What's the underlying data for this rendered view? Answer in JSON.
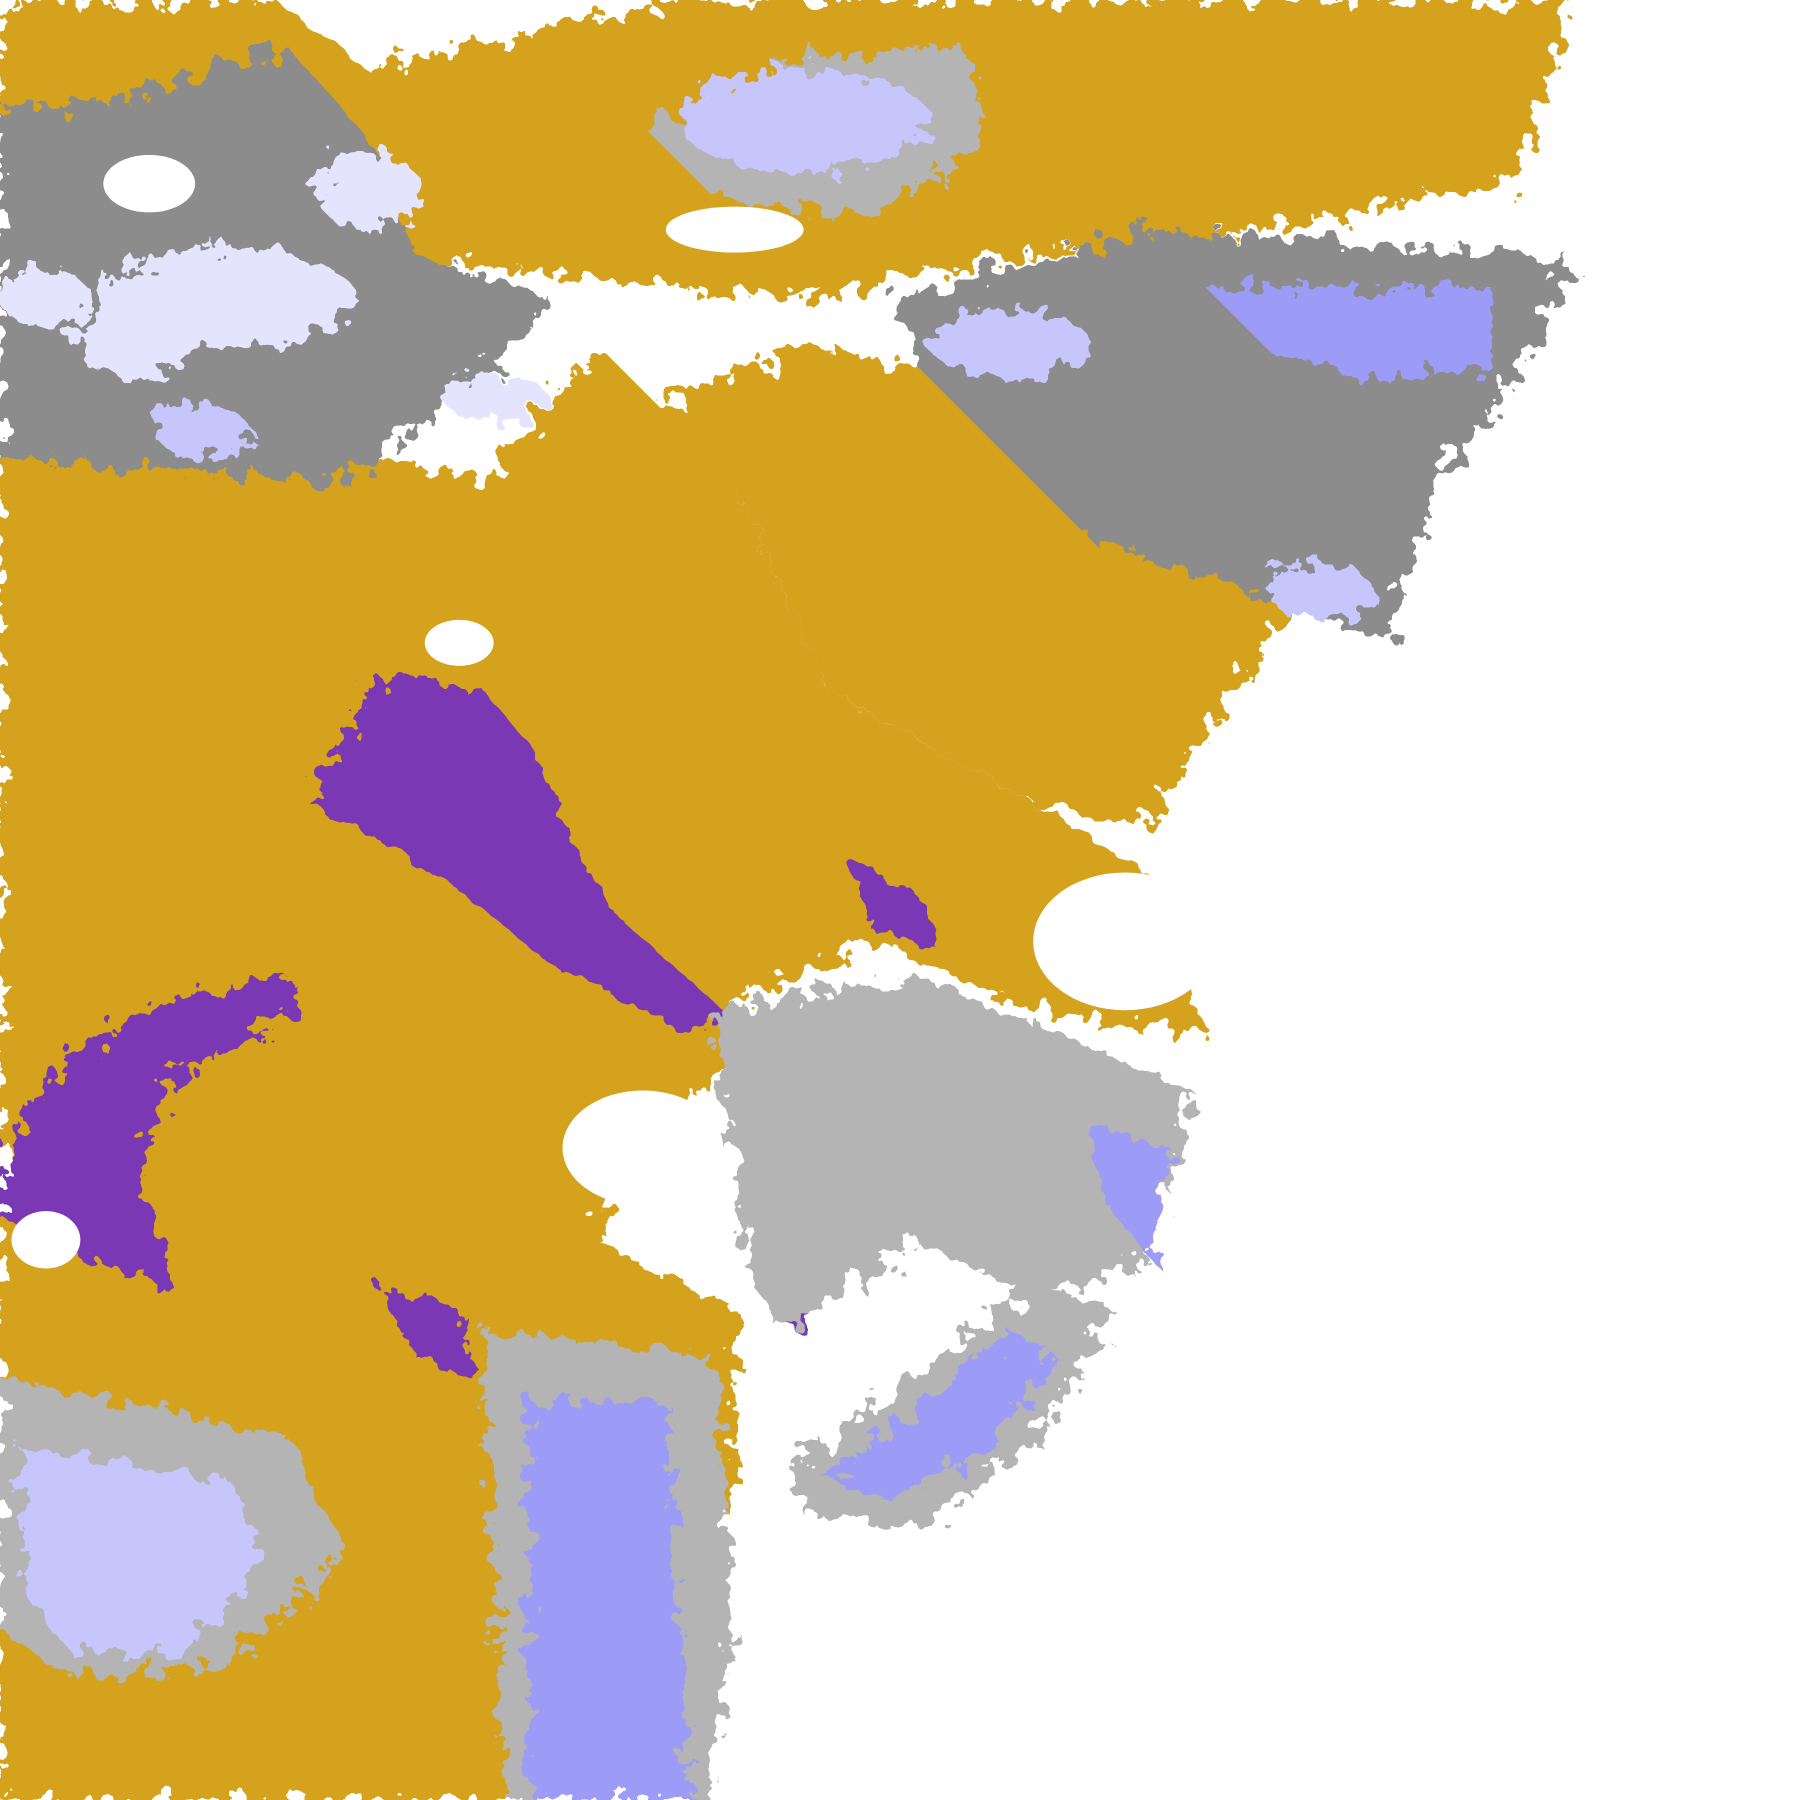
{
  "map": {
    "background": "#ffffff",
    "colors": {
      "gold": "#d4a21a",
      "purple": "#7a38b4",
      "lavender_light": "#e4e4fe",
      "lavender": "#c6c6fc",
      "periwinkle": "#9c9cf6",
      "gray_dark": "#8c8c8c",
      "gray_light": "#b4b4b4",
      "magenta_speckle": "#d060e0"
    }
  }
}
